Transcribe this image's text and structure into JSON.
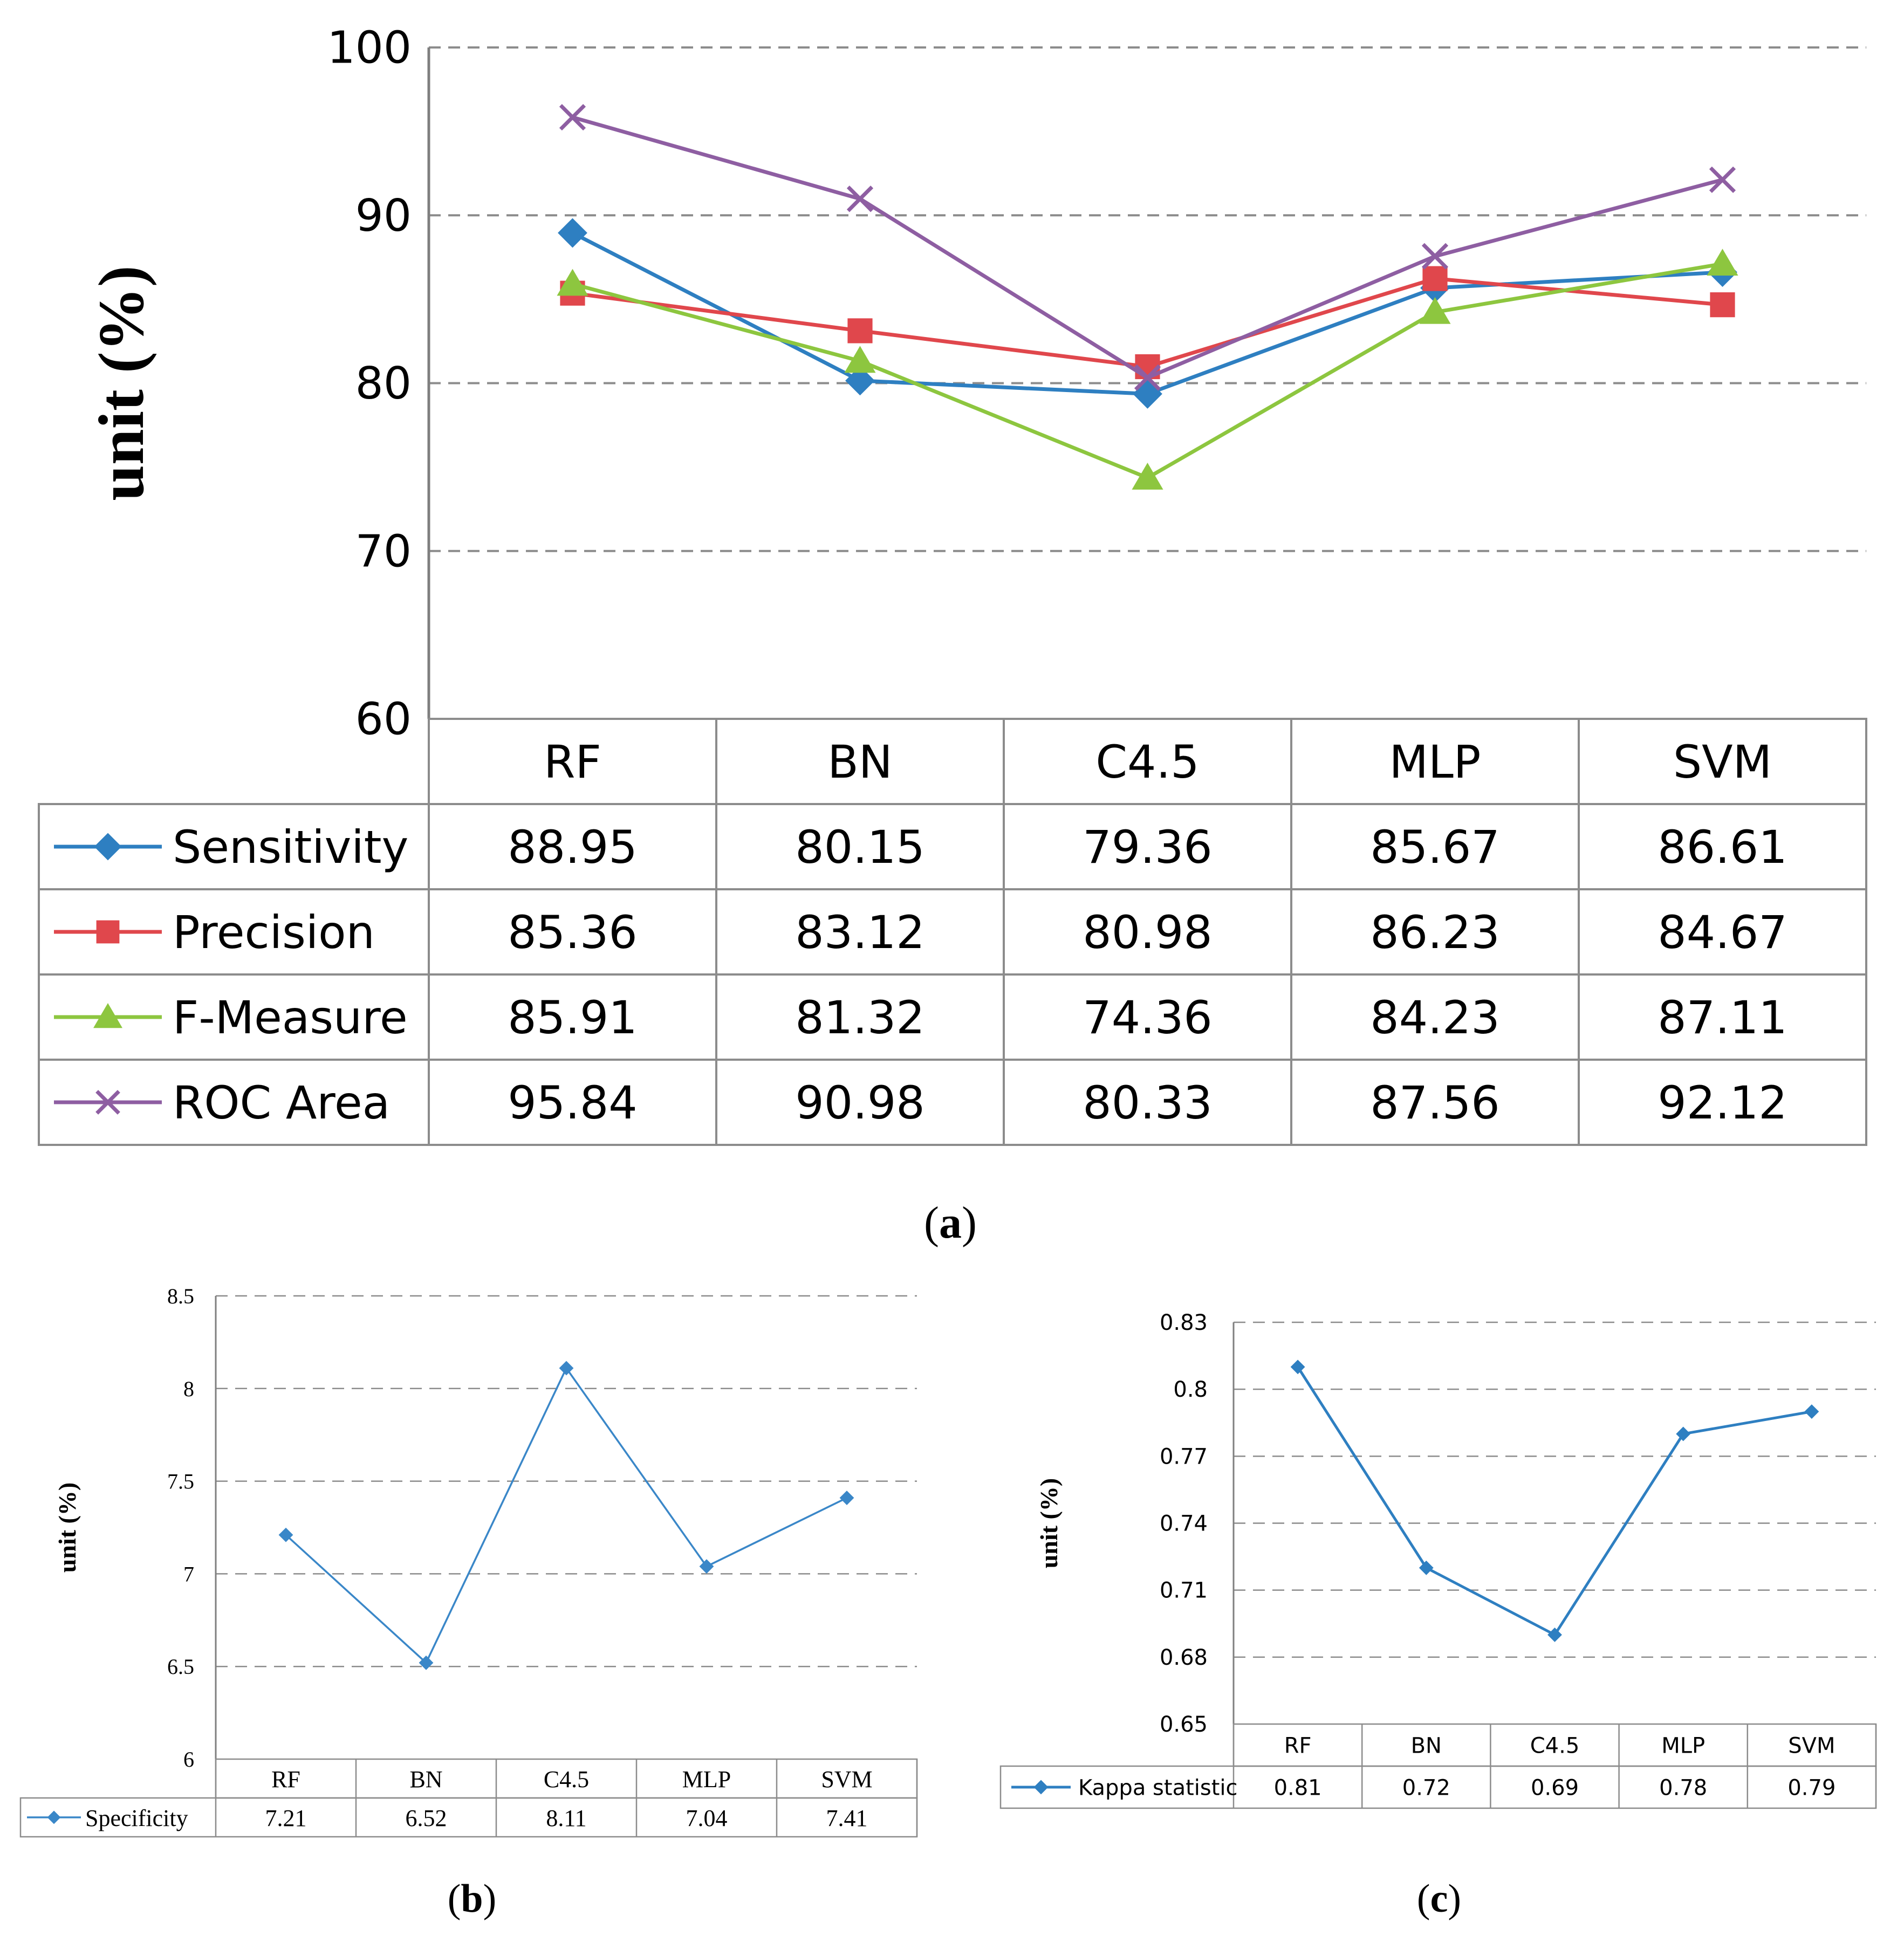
{
  "chart_data": [
    {
      "id": "a",
      "type": "line",
      "panel_label": "(a)",
      "panel_letter": "a",
      "ylabel": "unit (%)",
      "ylim": [
        60,
        100
      ],
      "yticks": [
        60,
        70,
        80,
        90,
        100
      ],
      "grid": true,
      "categories": [
        "RF",
        "BN",
        "C4.5",
        "MLP",
        "SVM"
      ],
      "series": [
        {
          "name": "Sensitivity",
          "values": [
            88.95,
            80.15,
            79.36,
            85.67,
            86.61
          ],
          "color": "#2e7fc1",
          "marker": "diamond"
        },
        {
          "name": "Precision",
          "values": [
            85.36,
            83.12,
            80.98,
            86.23,
            84.67
          ],
          "color": "#e0474c",
          "marker": "square"
        },
        {
          "name": "F-Measure",
          "values": [
            85.91,
            81.32,
            74.36,
            84.23,
            87.11
          ],
          "color": "#8dc63f",
          "marker": "triangle"
        },
        {
          "name": "ROC Area",
          "values": [
            95.84,
            90.98,
            80.33,
            87.56,
            92.12
          ],
          "color": "#8e5ea2",
          "marker": "cross"
        }
      ],
      "table_values_text": [
        [
          "88.95",
          "80.15",
          "79.36",
          "85.67",
          "86.61"
        ],
        [
          "85.36",
          "83.12",
          "80.98",
          "86.23",
          "84.67"
        ],
        [
          "85.91",
          "81.32",
          "74.36",
          "84.23",
          "87.11"
        ],
        [
          "95.84",
          "90.98",
          "80.33",
          "87.56",
          "92.12"
        ]
      ]
    },
    {
      "id": "b",
      "type": "line",
      "panel_label": "(b)",
      "panel_letter": "b",
      "ylabel": "unit (%)",
      "ylim": [
        6,
        8.5
      ],
      "yticks": [
        6,
        6.5,
        7,
        7.5,
        8,
        8.5
      ],
      "ytick_labels": [
        "6",
        "6.5",
        "7",
        "7.5",
        "8",
        "8.5"
      ],
      "grid": true,
      "categories": [
        "RF",
        "BN",
        "C4.5",
        "MLP",
        "SVM"
      ],
      "series": [
        {
          "name": "Specificity",
          "values": [
            7.21,
            6.52,
            8.11,
            7.04,
            7.41
          ],
          "color": "#3a87c8",
          "marker": "diamond"
        }
      ],
      "table_values_text": [
        [
          "7.21",
          "6.52",
          "8.11",
          "7.04",
          "7.41"
        ]
      ]
    },
    {
      "id": "c",
      "type": "line",
      "panel_label": "(c)",
      "panel_letter": "c",
      "ylabel": "unit (%)",
      "ylim": [
        0.65,
        0.83
      ],
      "yticks": [
        0.65,
        0.68,
        0.71,
        0.74,
        0.77,
        0.8,
        0.83
      ],
      "ytick_labels": [
        "0.65",
        "0.68",
        "0.71",
        "0.74",
        "0.77",
        "0.8",
        "0.83"
      ],
      "grid": true,
      "categories": [
        "RF",
        "BN",
        "C4.5",
        "MLP",
        "SVM"
      ],
      "series": [
        {
          "name": "Kappa statistic",
          "values": [
            0.81,
            0.72,
            0.69,
            0.78,
            0.79
          ],
          "color": "#2e7fc1",
          "marker": "diamond"
        }
      ],
      "table_values_text": [
        [
          "0.81",
          "0.72",
          "0.69",
          "0.78",
          "0.79"
        ]
      ]
    }
  ]
}
